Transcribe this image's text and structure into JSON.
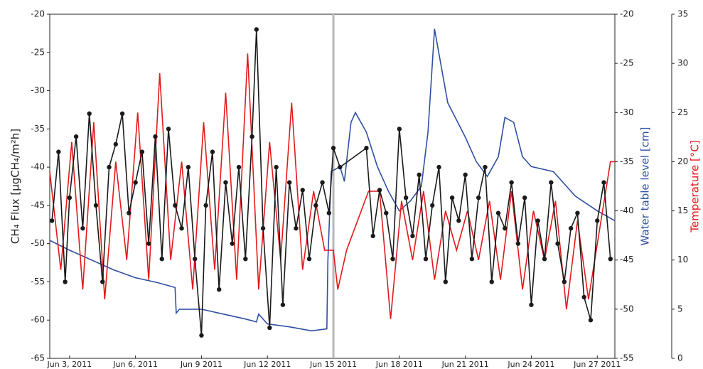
{
  "chart_data": {
    "type": "line",
    "ylabel": "CH₄ Flux [µgCH₄/m²h]",
    "y2label": "Water table level [cm]",
    "y3label": "Temperature [°C]",
    "xlim": [
      2.1,
      27.8
    ],
    "xticks": [
      {
        "value": 3,
        "label": "Jun 3, 2011"
      },
      {
        "value": 6,
        "label": "Jun 6, 2011"
      },
      {
        "value": 9,
        "label": "Jun 9 2011"
      },
      {
        "value": 12,
        "label": "Jun 12 2011"
      },
      {
        "value": 15,
        "label": "Jun 15 2011"
      },
      {
        "value": 18,
        "label": "Jun 18 2011"
      },
      {
        "value": 21,
        "label": "Jun 21 2011"
      },
      {
        "value": 24,
        "label": "Jun 24 2011"
      },
      {
        "value": 27,
        "label": "Jun 27 2011"
      }
    ],
    "ylim": [
      -65,
      -20
    ],
    "yticks": [
      -65,
      -60,
      -55,
      -50,
      -45,
      -40,
      -35,
      -30,
      -25,
      -20
    ],
    "y2lim": [
      -55,
      -20
    ],
    "y2ticks": [
      -55,
      -50,
      -45,
      -40,
      -35,
      -30,
      -25,
      -20
    ],
    "y3lim": [
      0,
      35
    ],
    "y3ticks": [
      0,
      5,
      10,
      15,
      20,
      25,
      30,
      35
    ],
    "vline": 15,
    "vline_color": "#b8b8b8",
    "series": [
      {
        "color": "#2f4fa3",
        "axis": "y2",
        "x": [
          2.1,
          3,
          4,
          5,
          6,
          7,
          7.8,
          7.85,
          8,
          9,
          10,
          11,
          11.5,
          11.6,
          12,
          13,
          14,
          14.7,
          14.75,
          14.9,
          15.3,
          15.5,
          15.8,
          16,
          16.5,
          17,
          17.5,
          18,
          18.5,
          19,
          19.3,
          19.6,
          19.8,
          20.2,
          21,
          21.5,
          22,
          22.5,
          22.8,
          23.2,
          23.6,
          24,
          25,
          26,
          27,
          27.8
        ],
        "values": [
          -43,
          -44,
          -45,
          -46,
          -46.8,
          -47.3,
          -47.8,
          -50.4,
          -50,
          -50,
          -50.5,
          -51,
          -51.3,
          -50.5,
          -51.5,
          -51.8,
          -52.2,
          -52,
          -45,
          -36,
          -35.5,
          -37,
          -31,
          -30,
          -32,
          -35.5,
          -38,
          -40,
          -39,
          -37.5,
          -32,
          -21.5,
          -24,
          -29,
          -32.5,
          -35,
          -36.5,
          -34.5,
          -30.5,
          -31,
          -34.5,
          -35.5,
          -36,
          -38.5,
          -40,
          -41
        ]
      },
      {
        "color": "#e3191c",
        "axis": "y3",
        "x": [
          2.1,
          2.6,
          3.1,
          3.6,
          4.1,
          4.6,
          5.1,
          5.6,
          6.1,
          6.6,
          7.1,
          7.6,
          8.1,
          8.6,
          9.1,
          9.6,
          10.1,
          10.6,
          11.1,
          11.6,
          12.1,
          12.6,
          13.1,
          13.6,
          14.1,
          14.6,
          15.0,
          15.2,
          15.6,
          16.6,
          17.1,
          17.6,
          18.1,
          18.6,
          19.1,
          19.6,
          20.1,
          20.6,
          21.1,
          21.6,
          22.1,
          22.6,
          23.1,
          23.6,
          24.1,
          24.6,
          25.1,
          25.6,
          26.1,
          26.6,
          27.1,
          27.6,
          27.8
        ],
        "values": [
          19,
          9,
          22,
          7,
          24,
          6,
          20,
          10,
          25,
          8,
          29,
          10,
          20,
          7,
          24,
          9,
          27,
          8,
          31,
          7,
          22,
          10,
          26,
          9,
          17,
          11,
          11,
          7,
          11,
          17,
          17,
          4,
          16,
          10,
          17,
          8,
          15,
          11,
          15,
          10,
          16,
          8,
          17,
          7,
          15,
          10,
          16,
          5,
          14,
          6,
          13,
          20,
          20
        ]
      },
      {
        "color": "#1a1a1a",
        "axis": "y",
        "markers": true,
        "x": [
          2.2,
          2.5,
          2.8,
          3.0,
          3.3,
          3.6,
          3.9,
          4.2,
          4.5,
          4.8,
          5.1,
          5.4,
          5.7,
          6.0,
          6.3,
          6.6,
          6.9,
          7.2,
          7.5,
          7.8,
          8.1,
          8.4,
          8.7,
          9.0,
          9.2,
          9.5,
          9.8,
          10.1,
          10.4,
          10.7,
          11.0,
          11.3,
          11.5,
          11.8,
          12.1,
          12.4,
          12.7,
          13.0,
          13.3,
          13.6,
          13.9,
          14.2,
          14.5,
          14.8,
          15.0,
          15.3,
          16.5,
          16.8,
          17.1,
          17.4,
          17.7,
          18.0,
          18.3,
          18.6,
          18.9,
          19.2,
          19.5,
          19.8,
          20.1,
          20.4,
          20.7,
          21.0,
          21.3,
          21.6,
          21.9,
          22.2,
          22.5,
          22.8,
          23.1,
          23.4,
          23.7,
          24.0,
          24.3,
          24.6,
          24.9,
          25.2,
          25.5,
          25.8,
          26.1,
          26.4,
          26.7,
          27.0,
          27.3,
          27.6
        ],
        "values": [
          -47,
          -38,
          -55,
          -44,
          -36,
          -48,
          -33,
          -45,
          -55,
          -40,
          -37,
          -33,
          -46,
          -42,
          -38,
          -50,
          -36,
          -52,
          -35,
          -45,
          -48,
          -40,
          -52,
          -62,
          -45,
          -38,
          -56,
          -42,
          -50,
          -40,
          -52,
          -36,
          -22,
          -48,
          -61,
          -40,
          -58,
          -42,
          -48,
          -43,
          -52,
          -45,
          -42,
          -46,
          -37.5,
          -40,
          -37.5,
          -49,
          -43,
          -46,
          -52,
          -35,
          -44,
          -49,
          -41,
          -52,
          -45,
          -40,
          -55,
          -44,
          -47,
          -41,
          -52,
          -44,
          -40,
          -55,
          -46,
          -48,
          -42,
          -50,
          -44,
          -58,
          -47,
          -52,
          -42,
          -50,
          -55,
          -48,
          -46,
          -57,
          -60,
          -47,
          -42,
          -52
        ]
      }
    ]
  }
}
